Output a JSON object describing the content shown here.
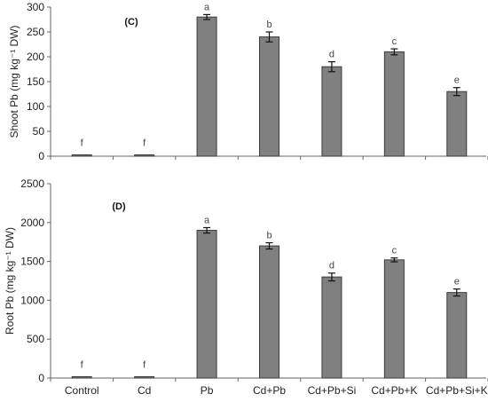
{
  "figure": {
    "categories": [
      "Control",
      "Cd",
      "Pb",
      "Cd+Pb",
      "Cd+Pb+Si",
      "Cd+Pb+K",
      "Cd+Pb+Si+K"
    ]
  },
  "chart_data": [
    {
      "type": "bar",
      "panel_label": "(C)",
      "ylabel": "Shoot Pb (mg kg⁻¹ DW)",
      "ylim": [
        0,
        300
      ],
      "yticks": [
        0,
        50,
        100,
        150,
        200,
        250,
        300
      ],
      "categories": [
        "Control",
        "Cd",
        "Pb",
        "Cd+Pb",
        "Cd+Pb+Si",
        "Cd+Pb+K",
        "Cd+Pb+Si+K"
      ],
      "values": [
        1,
        1,
        280,
        240,
        180,
        210,
        130
      ],
      "errors": [
        0,
        0,
        5,
        10,
        10,
        6,
        8
      ],
      "letters": [
        "f",
        "f",
        "a",
        "b",
        "d",
        "c",
        "e"
      ],
      "bar_color": "#808080",
      "grid": false
    },
    {
      "type": "bar",
      "panel_label": "(D)",
      "ylabel": "Root Pb (mg kg⁻¹ DW)",
      "ylim": [
        0,
        2500
      ],
      "yticks": [
        0,
        500,
        1000,
        1500,
        2000,
        2500
      ],
      "categories": [
        "Control",
        "Cd",
        "Pb",
        "Cd+Pb",
        "Cd+Pb+Si",
        "Cd+Pb+K",
        "Cd+Pb+Si+K"
      ],
      "values": [
        0,
        0,
        1900,
        1700,
        1300,
        1520,
        1100
      ],
      "errors": [
        0,
        0,
        35,
        40,
        50,
        25,
        45
      ],
      "letters": [
        "f",
        "f",
        "a",
        "b",
        "d",
        "c",
        "e"
      ],
      "bar_color": "#808080",
      "grid": false
    }
  ]
}
